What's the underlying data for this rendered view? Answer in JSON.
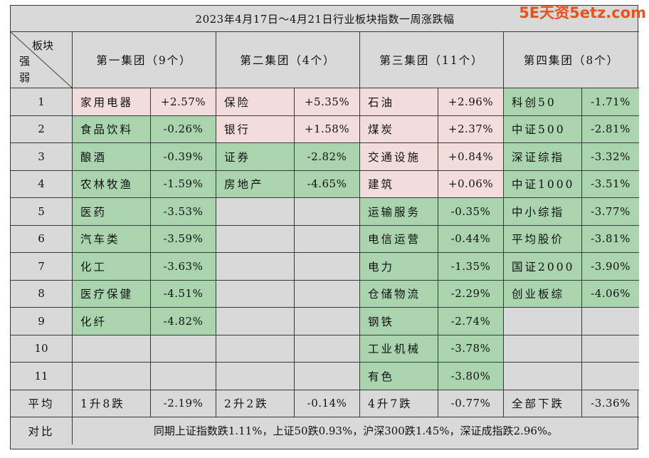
{
  "title": "2023年4月17日～4月21日行业板块指数一周涨跌幅",
  "watermark": "5E天资5etz.com",
  "corner": {
    "top_label": "板块",
    "left_label_1": "强",
    "left_label_2": "弱"
  },
  "groups": [
    "第一集团（9个）",
    "第二集团（4个）",
    "第三集团（11个）",
    "第四集团（8个）"
  ],
  "colors": {
    "gain": "#f2dcdc",
    "loss": "#a9d4ae",
    "empty": "#d9d9d9"
  },
  "rows": [
    {
      "rank": "1",
      "cells": [
        {
          "name": "家用电器",
          "value": "+2.57%",
          "status": "gain"
        },
        {
          "name": "保险",
          "value": "+5.35%",
          "status": "gain"
        },
        {
          "name": "石油",
          "value": "+2.96%",
          "status": "gain"
        },
        {
          "name": "科创50",
          "value": "-1.71%",
          "status": "loss"
        }
      ]
    },
    {
      "rank": "2",
      "cells": [
        {
          "name": "食品饮料",
          "value": "-0.26%",
          "status": "loss"
        },
        {
          "name": "银行",
          "value": "+1.58%",
          "status": "gain"
        },
        {
          "name": "煤炭",
          "value": "+2.37%",
          "status": "gain"
        },
        {
          "name": "中证500",
          "value": "-2.81%",
          "status": "loss"
        }
      ]
    },
    {
      "rank": "3",
      "cells": [
        {
          "name": "酿酒",
          "value": "-0.39%",
          "status": "loss"
        },
        {
          "name": "证券",
          "value": "-2.82%",
          "status": "loss"
        },
        {
          "name": "交通设施",
          "value": "+0.84%",
          "status": "gain"
        },
        {
          "name": "深证综指",
          "value": "-3.32%",
          "status": "loss"
        }
      ]
    },
    {
      "rank": "4",
      "cells": [
        {
          "name": "农林牧渔",
          "value": "-1.59%",
          "status": "loss"
        },
        {
          "name": "房地产",
          "value": "-4.65%",
          "status": "loss"
        },
        {
          "name": "建筑",
          "value": "+0.06%",
          "status": "gain"
        },
        {
          "name": "中证1000",
          "value": "-3.51%",
          "status": "loss"
        }
      ]
    },
    {
      "rank": "5",
      "cells": [
        {
          "name": "医药",
          "value": "-3.53%",
          "status": "loss"
        },
        {
          "name": "",
          "value": "",
          "status": "empty"
        },
        {
          "name": "运输服务",
          "value": "-0.35%",
          "status": "loss"
        },
        {
          "name": "中小综指",
          "value": "-3.77%",
          "status": "loss"
        }
      ]
    },
    {
      "rank": "6",
      "cells": [
        {
          "name": "汽车类",
          "value": "-3.59%",
          "status": "loss"
        },
        {
          "name": "",
          "value": "",
          "status": "empty"
        },
        {
          "name": "电信运营",
          "value": "-0.44%",
          "status": "loss"
        },
        {
          "name": "平均股价",
          "value": "-3.81%",
          "status": "loss"
        }
      ]
    },
    {
      "rank": "7",
      "cells": [
        {
          "name": "化工",
          "value": "-3.63%",
          "status": "loss"
        },
        {
          "name": "",
          "value": "",
          "status": "empty"
        },
        {
          "name": "电力",
          "value": "-1.35%",
          "status": "loss"
        },
        {
          "name": "国证2000",
          "value": "-3.90%",
          "status": "loss"
        }
      ]
    },
    {
      "rank": "8",
      "cells": [
        {
          "name": "医疗保健",
          "value": "-4.51%",
          "status": "loss"
        },
        {
          "name": "",
          "value": "",
          "status": "empty"
        },
        {
          "name": "仓储物流",
          "value": "-2.29%",
          "status": "loss"
        },
        {
          "name": "创业板综",
          "value": "-4.06%",
          "status": "loss"
        }
      ]
    },
    {
      "rank": "9",
      "cells": [
        {
          "name": "化纤",
          "value": "-4.82%",
          "status": "loss"
        },
        {
          "name": "",
          "value": "",
          "status": "empty"
        },
        {
          "name": "钢铁",
          "value": "-2.74%",
          "status": "loss"
        },
        {
          "name": "",
          "value": "",
          "status": "empty"
        }
      ]
    },
    {
      "rank": "10",
      "cells": [
        {
          "name": "",
          "value": "",
          "status": "empty"
        },
        {
          "name": "",
          "value": "",
          "status": "empty"
        },
        {
          "name": "工业机械",
          "value": "-3.78%",
          "status": "loss"
        },
        {
          "name": "",
          "value": "",
          "status": "empty"
        }
      ]
    },
    {
      "rank": "11",
      "cells": [
        {
          "name": "",
          "value": "",
          "status": "empty"
        },
        {
          "name": "",
          "value": "",
          "status": "empty"
        },
        {
          "name": "有色",
          "value": "-3.80%",
          "status": "loss"
        },
        {
          "name": "",
          "value": "",
          "status": "empty"
        }
      ]
    }
  ],
  "average": {
    "label": "平均",
    "cells": [
      {
        "name": "1升8跌",
        "value": "-2.19%"
      },
      {
        "name": "2升2跌",
        "value": "-0.14%"
      },
      {
        "name": "4升7跌",
        "value": "-0.77%"
      },
      {
        "name": "全部下跌",
        "value": "-3.36%"
      }
    ]
  },
  "comparison": {
    "label": "对比",
    "text": "同期上证指数跌1.11%，上证50跌0.93%，沪深300跌1.45%，深证成指跌2.96%。"
  }
}
